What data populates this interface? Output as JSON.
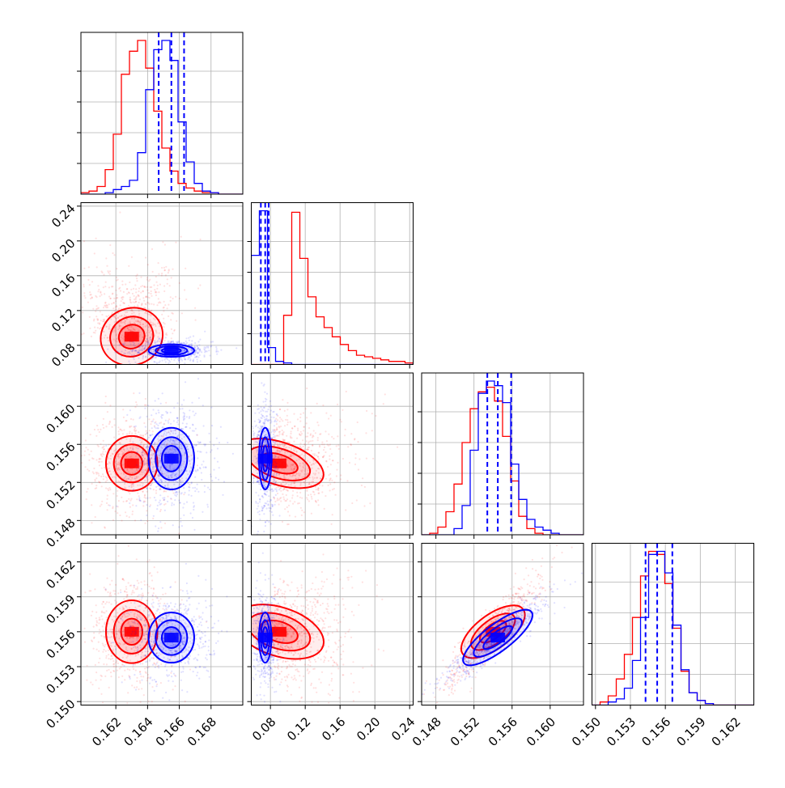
{
  "chart_data": {
    "type": "scatter",
    "subtype": "corner-plot",
    "title": "",
    "grid": true,
    "colors": {
      "series_a": "#ff0000",
      "series_b": "#0000ff"
    },
    "parameters": [
      {
        "id": "p1",
        "range": [
          0.1598,
          0.17
        ],
        "ticks": [
          "0.162",
          "0.164",
          "0.166",
          "0.168"
        ],
        "tick_values": [
          0.162,
          0.164,
          0.166,
          0.168
        ]
      },
      {
        "id": "p2",
        "range": [
          0.058,
          0.244
        ],
        "ticks": [
          "0.08",
          "0.12",
          "0.16",
          "0.20",
          "0.24"
        ],
        "tick_values": [
          0.08,
          0.12,
          0.16,
          0.2,
          0.24
        ]
      },
      {
        "id": "p3",
        "range": [
          0.1465,
          0.1635
        ],
        "ticks": [
          "0.148",
          "0.152",
          "0.156",
          "0.160"
        ],
        "tick_values": [
          0.148,
          0.152,
          0.156,
          0.16
        ]
      },
      {
        "id": "p4",
        "range": [
          0.1497,
          0.1636
        ],
        "ticks": [
          "0.150",
          "0.153",
          "0.156",
          "0.159",
          "0.162"
        ],
        "tick_values": [
          0.15,
          0.153,
          0.156,
          0.159,
          0.162
        ]
      }
    ],
    "series": [
      {
        "color": "#ff0000",
        "means": [
          0.163,
          0.09,
          0.154,
          0.156
        ],
        "sigmas": [
          0.0009,
          0.025,
          0.0016,
          0.0015
        ],
        "correlations": {
          "p1_p2": 0.55,
          "p1_p3": 0.0,
          "p1_p4": 0.0,
          "p2_p3": -0.45,
          "p2_p4": -0.45,
          "p3_p4": 0.92
        },
        "histograms": {
          "p1": [
            0.01,
            0.02,
            0.05,
            0.16,
            0.39,
            0.78,
            0.93,
            1.0,
            0.82,
            0.54,
            0.3,
            0.15,
            0.07,
            0.04,
            0.02,
            0.01,
            0.01,
            0.0,
            0.0,
            0.0
          ],
          "p2": [
            0.0,
            0.0,
            0.0,
            0.0,
            0.32,
            0.99,
            0.69,
            0.44,
            0.31,
            0.24,
            0.18,
            0.13,
            0.09,
            0.06,
            0.05,
            0.04,
            0.03,
            0.02,
            0.02,
            0.01
          ],
          "p3": [
            0.0,
            0.01,
            0.05,
            0.15,
            0.33,
            0.6,
            0.82,
            0.93,
            0.96,
            0.87,
            0.64,
            0.35,
            0.12,
            0.04,
            0.01,
            0.0,
            0.0,
            0.0,
            0.0,
            0.0
          ],
          "p4": [
            0.0,
            0.02,
            0.06,
            0.17,
            0.33,
            0.57,
            0.84,
            1.0,
            0.98,
            0.79,
            0.5,
            0.22,
            0.08,
            0.03,
            0.01,
            0.0,
            0.0,
            0.0,
            0.0,
            0.0
          ]
        }
      },
      {
        "color": "#0000ff",
        "means": [
          0.1655,
          0.074,
          0.1545,
          0.1555
        ],
        "sigmas": [
          0.0008,
          0.004,
          0.0018,
          0.0012
        ],
        "correlations": {
          "p1_p2": 0.0,
          "p1_p3": 0.0,
          "p1_p4": 0.0,
          "p2_p3": 0.0,
          "p2_p4": 0.0,
          "p3_p4": 0.93
        },
        "quantiles": {
          "p1": [
            0.1647,
            0.1655,
            0.1663
          ],
          "p2": [
            0.069,
            0.074,
            0.078
          ],
          "p3": [
            0.1534,
            0.1545,
            0.1559
          ],
          "p4": [
            0.1543,
            0.1553,
            0.1566
          ]
        },
        "histograms": {
          "p1": [
            0.0,
            0.0,
            0.0,
            0.01,
            0.03,
            0.05,
            0.09,
            0.27,
            0.68,
            0.94,
            1.0,
            0.87,
            0.47,
            0.21,
            0.07,
            0.02,
            0.01,
            0.0,
            0.0,
            0.0
          ],
          "p2": [
            0.71,
            1.0,
            0.11,
            0.02,
            0.01,
            0.0,
            0.0,
            0.0,
            0.0,
            0.0,
            0.0,
            0.0,
            0.0,
            0.0,
            0.0,
            0.0,
            0.0,
            0.0,
            0.0,
            0.0
          ],
          "p3": [
            0.0,
            0.0,
            0.0,
            0.0,
            0.04,
            0.19,
            0.55,
            0.92,
            1.0,
            0.97,
            0.86,
            0.46,
            0.23,
            0.1,
            0.05,
            0.03,
            0.01,
            0.0,
            0.0,
            0.0
          ],
          "p4": [
            0.0,
            0.0,
            0.02,
            0.04,
            0.11,
            0.29,
            0.57,
            0.98,
            1.0,
            0.86,
            0.52,
            0.23,
            0.08,
            0.03,
            0.01,
            0.0,
            0.0,
            0.0,
            0.0,
            0.0
          ]
        }
      }
    ]
  }
}
